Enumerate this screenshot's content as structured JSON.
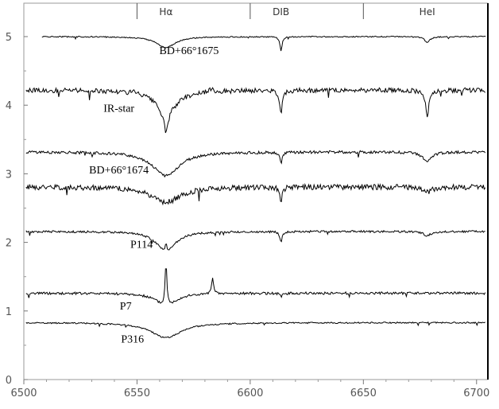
{
  "chart_data": {
    "type": "line",
    "xlim": [
      6500,
      6705
    ],
    "ylim": [
      0,
      5.5
    ],
    "x_ticks": [
      "6500",
      "6550",
      "6600",
      "6650",
      "6700"
    ],
    "y_ticks": [
      "0",
      "1",
      "2",
      "3",
      "4",
      "5"
    ],
    "top_markers": [
      {
        "label": "Hα",
        "x": 6562.8
      },
      {
        "label": "DIB",
        "x": 6613.6
      },
      {
        "label": "HeI",
        "x": 6678.2
      }
    ],
    "top_dividers": [
      6550,
      6600,
      6650
    ],
    "grid": false,
    "series": [
      {
        "name": "BD+66°1675",
        "baseline": 5.0,
        "noise": 0.008,
        "features": [
          [
            6562.8,
            -0.16,
            5
          ],
          [
            6613.6,
            -0.2,
            0.6
          ],
          [
            6678.2,
            -0.08,
            1.5
          ]
        ],
        "label_at": [
          6573,
          4.8
        ]
      },
      {
        "name": "IR-star",
        "baseline": 4.22,
        "noise": 0.035,
        "features": [
          [
            6562.8,
            -0.3,
            6
          ],
          [
            6562.8,
            -0.3,
            1.2
          ],
          [
            6613.6,
            -0.32,
            0.7
          ],
          [
            6678.2,
            -0.42,
            0.8
          ],
          [
            6583,
            0.06,
            0.8
          ],
          [
            6548,
            0.04,
            0.8
          ]
        ],
        "label_at": [
          6542,
          3.96
        ]
      },
      {
        "name": "BD+66°1674",
        "baseline": 3.32,
        "noise": 0.02,
        "features": [
          [
            6562.8,
            -0.35,
            7
          ],
          [
            6613.6,
            -0.16,
            0.6
          ],
          [
            6678.2,
            -0.14,
            2.5
          ]
        ],
        "label_at": [
          6542,
          3.06
        ]
      },
      {
        "name": "",
        "baseline": 2.81,
        "noise": 0.04,
        "features": [
          [
            6562.8,
            -0.22,
            8
          ],
          [
            6613.6,
            -0.2,
            0.6
          ],
          [
            6678.2,
            -0.07,
            3
          ]
        ]
      },
      {
        "name": "P114",
        "baseline": 2.16,
        "noise": 0.015,
        "features": [
          [
            6562.8,
            -0.3,
            5
          ],
          [
            6562.8,
            0.12,
            0.5
          ],
          [
            6613.6,
            -0.15,
            0.6
          ],
          [
            6678.2,
            -0.06,
            2
          ]
        ],
        "label_at": [
          6552,
          1.98
        ]
      },
      {
        "name": "P7",
        "baseline": 1.26,
        "noise": 0.018,
        "features": [
          [
            6562.8,
            -0.2,
            5
          ],
          [
            6562.8,
            0.65,
            0.5
          ],
          [
            6583.4,
            0.25,
            0.45
          ],
          [
            6613.6,
            -0.05,
            0.6
          ]
        ],
        "label_at": [
          6545,
          1.08
        ]
      },
      {
        "name": "P316",
        "baseline": 0.83,
        "noise": 0.01,
        "features": [
          [
            6562.8,
            -0.22,
            8
          ]
        ],
        "label_at": [
          6548,
          0.6
        ]
      }
    ]
  }
}
